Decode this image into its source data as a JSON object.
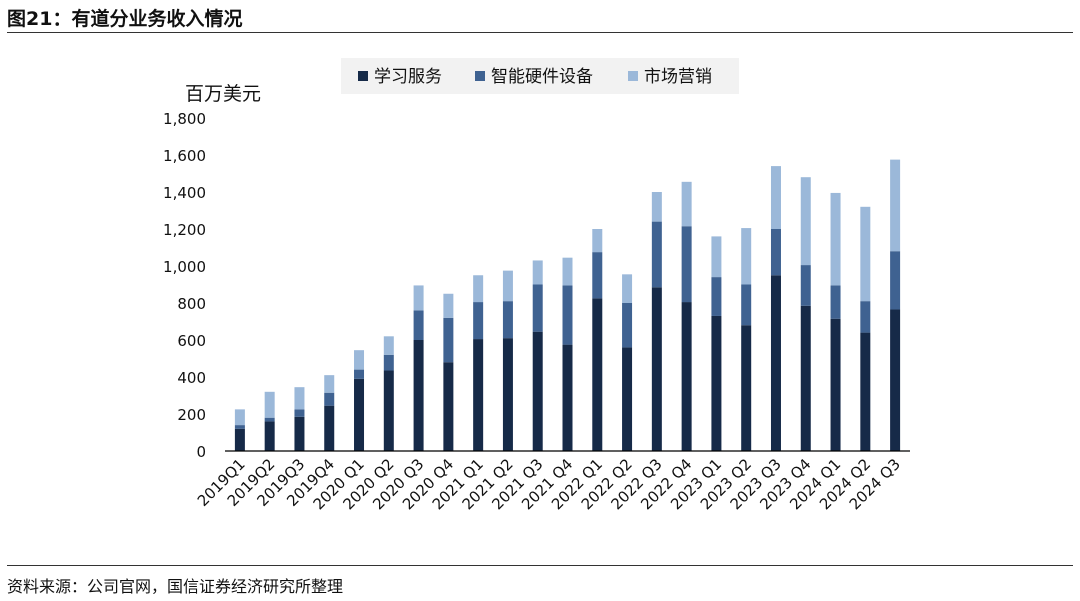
{
  "figure_title": "图21：有道分业务收入情况",
  "source_note": "资料来源：公司官网，国信证券经济研究所整理",
  "chart_data": {
    "type": "bar",
    "stacked": true,
    "unit_label": "百万美元",
    "ylim": [
      0,
      1800
    ],
    "y_ticks": [
      "0",
      "200",
      "400",
      "600",
      "800",
      "1,000",
      "1,200",
      "1,400",
      "1,600",
      "1,800"
    ],
    "y_tick_values": [
      0,
      200,
      400,
      600,
      800,
      1000,
      1200,
      1400,
      1600,
      1800
    ],
    "grid": false,
    "legend_position": "top",
    "categories": [
      "2019Q1",
      "2019Q2",
      "2019Q3",
      "2019Q4",
      "2020 Q1",
      "2020 Q2",
      "2020 Q3",
      "2020 Q4",
      "2021 Q1",
      "2021 Q2",
      "2021 Q3",
      "2021 Q4",
      "2022 Q1",
      "2022 Q2",
      "2022 Q3",
      "2022 Q4",
      "2023 Q1",
      "2023 Q2",
      "2023 Q3",
      "2023 Q4",
      "2024 Q1",
      "2024 Q2",
      "2024 Q3"
    ],
    "series": [
      {
        "name": "学习服务",
        "color": "#162a48",
        "values": [
          120,
          160,
          185,
          245,
          390,
          435,
          600,
          480,
          605,
          610,
          645,
          575,
          825,
          560,
          885,
          805,
          730,
          680,
          950,
          785,
          715,
          640,
          765
        ]
      },
      {
        "name": "智能硬件设备",
        "color": "#3f6291",
        "values": [
          20,
          20,
          40,
          70,
          50,
          85,
          160,
          240,
          200,
          200,
          255,
          320,
          250,
          240,
          355,
          410,
          210,
          220,
          250,
          220,
          180,
          170,
          315
        ]
      },
      {
        "name": "市场营销",
        "color": "#9bb8d9",
        "values": [
          85,
          140,
          120,
          95,
          105,
          100,
          135,
          130,
          145,
          165,
          130,
          150,
          125,
          155,
          160,
          240,
          220,
          305,
          340,
          475,
          500,
          510,
          495
        ]
      }
    ]
  }
}
